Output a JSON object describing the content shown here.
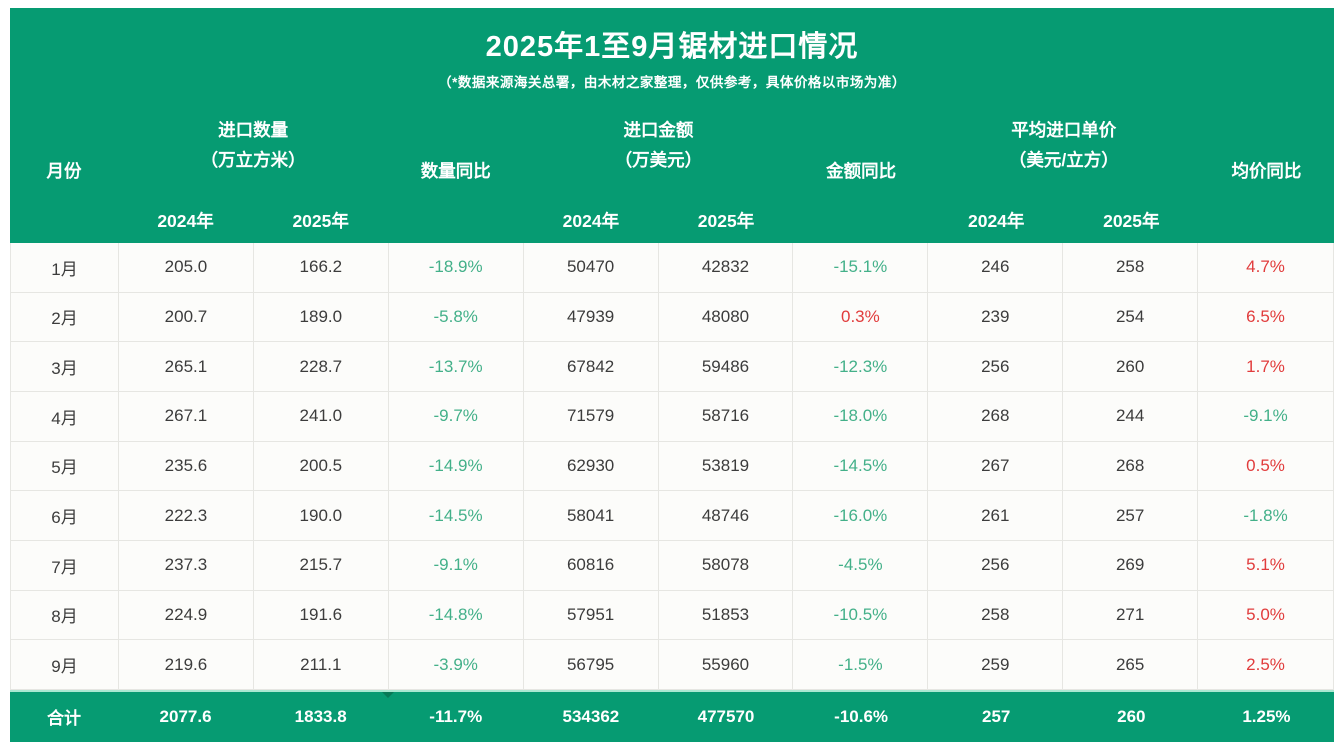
{
  "chart_data": {
    "type": "table",
    "title": "2025年1至9月锯材进口情况",
    "subtitle": "（*数据来源海关总署，由木材之家整理，仅供参考，具体价格以市场为准）",
    "column_groups": [
      {
        "label": "月份"
      },
      {
        "label": "进口数量",
        "unit": "（万立方米）",
        "subcols": [
          "2024年",
          "2025年"
        ]
      },
      {
        "label": "数量同比"
      },
      {
        "label": "进口金额",
        "unit": "（万美元）",
        "subcols": [
          "2024年",
          "2025年"
        ]
      },
      {
        "label": "金额同比"
      },
      {
        "label": "平均进口单价",
        "unit": "（美元/立方）",
        "subcols": [
          "2024年",
          "2025年"
        ]
      },
      {
        "label": "均价同比"
      }
    ],
    "rows": [
      [
        "1月",
        "205.0",
        "166.2",
        "-18.9%",
        "50470",
        "42832",
        "-15.1%",
        "246",
        "258",
        "4.7%"
      ],
      [
        "2月",
        "200.7",
        "189.0",
        "-5.8%",
        "47939",
        "48080",
        "0.3%",
        "239",
        "254",
        "6.5%"
      ],
      [
        "3月",
        "265.1",
        "228.7",
        "-13.7%",
        "67842",
        "59486",
        "-12.3%",
        "256",
        "260",
        "1.7%"
      ],
      [
        "4月",
        "267.1",
        "241.0",
        "-9.7%",
        "71579",
        "58716",
        "-18.0%",
        "268",
        "244",
        "-9.1%"
      ],
      [
        "5月",
        "235.6",
        "200.5",
        "-14.9%",
        "62930",
        "53819",
        "-14.5%",
        "267",
        "268",
        "0.5%"
      ],
      [
        "6月",
        "222.3",
        "190.0",
        "-14.5%",
        "58041",
        "48746",
        "-16.0%",
        "261",
        "257",
        "-1.8%"
      ],
      [
        "7月",
        "237.3",
        "215.7",
        "-9.1%",
        "60816",
        "58078",
        "-4.5%",
        "256",
        "269",
        "5.1%"
      ],
      [
        "8月",
        "224.9",
        "191.6",
        "-14.8%",
        "57951",
        "51853",
        "-10.5%",
        "258",
        "271",
        "5.0%"
      ],
      [
        "9月",
        "219.6",
        "211.1",
        "-3.9%",
        "56795",
        "55960",
        "-1.5%",
        "259",
        "265",
        "2.5%"
      ]
    ],
    "total_row": [
      "合计",
      "2077.6",
      "1833.8",
      "-11.7%",
      "534362",
      "477570",
      "-10.6%",
      "257",
      "260",
      "1.25%"
    ]
  },
  "colors": {
    "brand_green": "#069b72",
    "negative_yoy_green": "#43b089",
    "positive_yoy_red": "#e13c3c",
    "body_text": "#3c3c3c",
    "grid_line": "#e6e6e2"
  }
}
